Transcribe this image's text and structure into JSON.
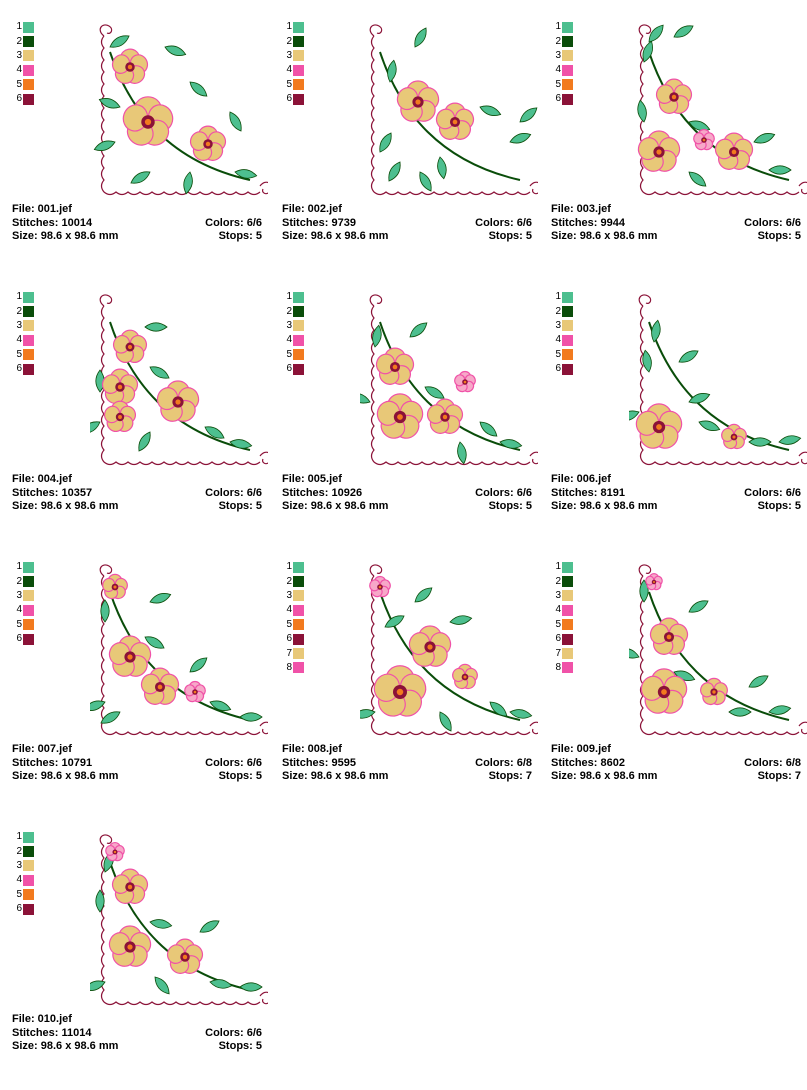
{
  "thread_colors": {
    "c1": "#4dbf8f",
    "c2": "#0a4d0a",
    "c3": "#e8c878",
    "c4": "#f052a8",
    "c5": "#f27a1e",
    "c6": "#8b1238"
  },
  "palette_8": [
    "#4dbf8f",
    "#0a4d0a",
    "#e8c878",
    "#f052a8",
    "#f27a1e",
    "#8b1238",
    "#e8c878",
    "#f052a8"
  ],
  "designs": [
    {
      "file": "File: 001.jef",
      "stitches": "Stitches: 10014",
      "size": "Size: 98.6 x 98.6 mm",
      "colors": "Colors: 6/6",
      "stops": "Stops: 5",
      "swatch_labels": [
        "1",
        "2",
        "3",
        "4",
        "5",
        "6"
      ]
    },
    {
      "file": "File: 002.jef",
      "stitches": "Stitches: 9739",
      "size": "Size: 98.6 x 98.6 mm",
      "colors": "Colors: 6/6",
      "stops": "Stops: 5",
      "swatch_labels": [
        "1",
        "2",
        "3",
        "4",
        "5",
        "6"
      ]
    },
    {
      "file": "File: 003.jef",
      "stitches": "Stitches: 9944",
      "size": "Size: 98.6 x 98.6 mm",
      "colors": "Colors: 6/6",
      "stops": "Stops: 5",
      "swatch_labels": [
        "1",
        "2",
        "3",
        "4",
        "5",
        "6"
      ]
    },
    {
      "file": "File: 004.jef",
      "stitches": "Stitches: 10357",
      "size": "Size: 98.6 x 98.6 mm",
      "colors": "Colors: 6/6",
      "stops": "Stops: 5",
      "swatch_labels": [
        "1",
        "2",
        "3",
        "4",
        "5",
        "6"
      ]
    },
    {
      "file": "File: 005.jef",
      "stitches": "Stitches: 10926",
      "size": "Size: 98.6 x 98.6 mm",
      "colors": "Colors: 6/6",
      "stops": "Stops: 5",
      "swatch_labels": [
        "1",
        "2",
        "3",
        "4",
        "5",
        "6"
      ]
    },
    {
      "file": "File: 006.jef",
      "stitches": "Stitches: 8191",
      "size": "Size: 98.6 x 98.6 mm",
      "colors": "Colors: 6/6",
      "stops": "Stops: 5",
      "swatch_labels": [
        "1",
        "2",
        "3",
        "4",
        "5",
        "6"
      ]
    },
    {
      "file": "File: 007.jef",
      "stitches": "Stitches: 10791",
      "size": "Size: 98.6 x 98.6 mm",
      "colors": "Colors: 6/6",
      "stops": "Stops: 5",
      "swatch_labels": [
        "1",
        "2",
        "3",
        "4",
        "5",
        "6"
      ]
    },
    {
      "file": "File: 008.jef",
      "stitches": "Stitches: 9595",
      "size": "Size: 98.6 x 98.6 mm",
      "colors": "Colors: 6/8",
      "stops": "Stops: 7",
      "swatch_labels": [
        "1",
        "2",
        "3",
        "4",
        "5",
        "6",
        "7",
        "8"
      ]
    },
    {
      "file": "File: 009.jef",
      "stitches": "Stitches: 8602",
      "size": "Size: 98.6 x 98.6 mm",
      "colors": "Colors: 6/8",
      "stops": "Stops: 7",
      "swatch_labels": [
        "1",
        "2",
        "3",
        "4",
        "5",
        "6",
        "7",
        "8"
      ]
    },
    {
      "file": "File: 010.jef",
      "stitches": "Stitches: 11014",
      "size": "Size: 98.6 x 98.6 mm",
      "colors": "Colors: 6/6",
      "stops": "Stops: 5",
      "swatch_labels": [
        "1",
        "2",
        "3",
        "4",
        "5",
        "6"
      ]
    }
  ],
  "motif_icon": "floral-corner-embroidery-icon"
}
